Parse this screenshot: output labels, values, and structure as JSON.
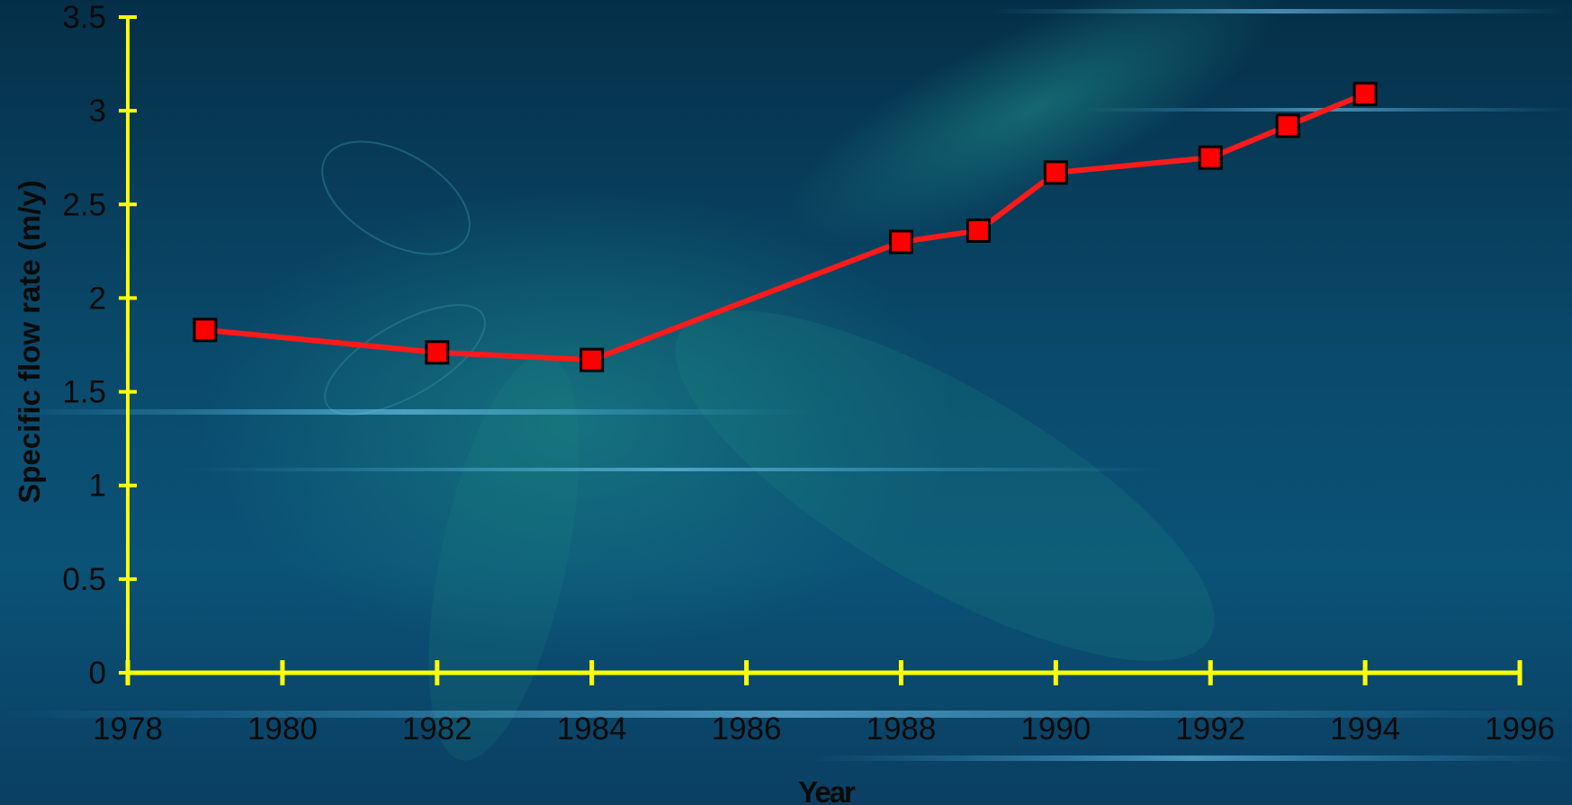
{
  "colors": {
    "axis": "#ffff00",
    "series_line": "#ff1a1a",
    "marker_fill": "#ff0000",
    "marker_stroke": "#000000",
    "text": "#0a0a0a"
  },
  "chart_data": {
    "type": "line",
    "title": "",
    "xlabel": "Year",
    "ylabel": "Specific flow rate (m/y)",
    "xlim": [
      1978,
      1996
    ],
    "ylim": [
      0,
      3.5
    ],
    "x_ticks": [
      "1978",
      "1980",
      "1982",
      "1984",
      "1986",
      "1988",
      "1990",
      "1992",
      "1994",
      "1996"
    ],
    "y_ticks": [
      "0",
      "0.5",
      "1",
      "1.5",
      "2",
      "2.5",
      "3",
      "3.5"
    ],
    "grid": false,
    "legend": "none",
    "series": [
      {
        "x": [
          1979,
          1982,
          1984,
          1988,
          1989,
          1990,
          1992,
          1993,
          1994
        ],
        "y": [
          1.83,
          1.71,
          1.67,
          2.3,
          2.36,
          2.67,
          2.75,
          2.92,
          3.09
        ]
      }
    ]
  }
}
